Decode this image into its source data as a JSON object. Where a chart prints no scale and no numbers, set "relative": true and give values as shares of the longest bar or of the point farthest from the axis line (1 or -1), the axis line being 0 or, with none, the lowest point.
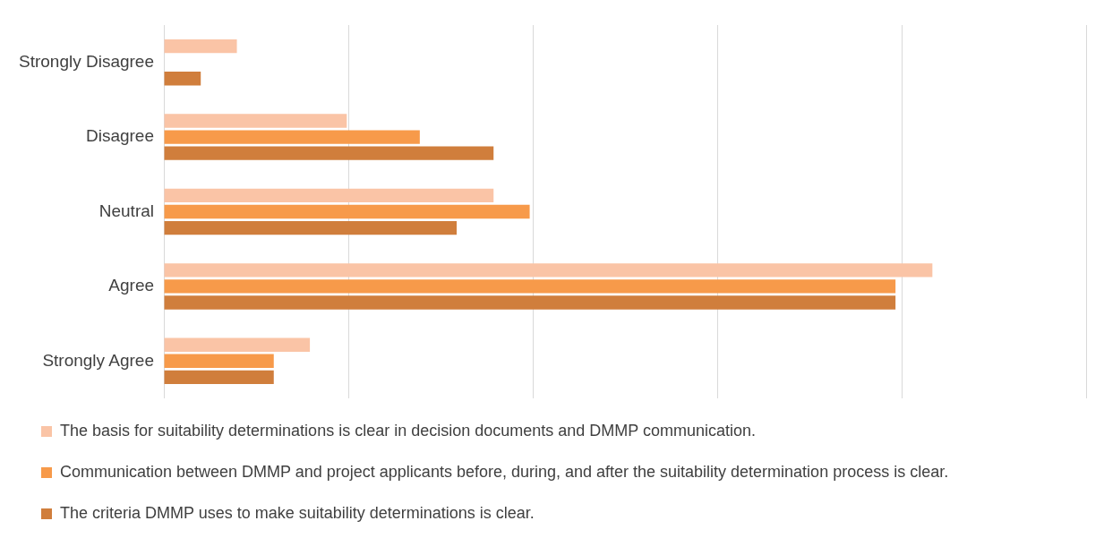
{
  "chart_data": {
    "type": "bar",
    "orientation": "horizontal",
    "relative": true,
    "grid": "x",
    "legend": "bottom",
    "categories": [
      "Strongly Disagree",
      "Disagree",
      "Neutral",
      "Agree",
      "Strongly Agree"
    ],
    "series": [
      {
        "name": "The basis for suitability determinations is clear in decision documents and DMMP communication.",
        "color": "#fac4a6",
        "values": [
          0.095,
          0.238,
          0.429,
          1,
          0.19
        ]
      },
      {
        "name": "Communication between DMMP and project applicants before, during, and after the suitability determination process is clear.",
        "color": "#f79a4a",
        "values": [
          0,
          0.333,
          0.476,
          0.952,
          0.143
        ]
      },
      {
        "name": "The criteria DMMP uses to make suitability determinations is clear.",
        "color": "#d07e3c",
        "values": [
          0.048,
          0.429,
          0.381,
          0.952,
          0.143
        ]
      }
    ]
  }
}
